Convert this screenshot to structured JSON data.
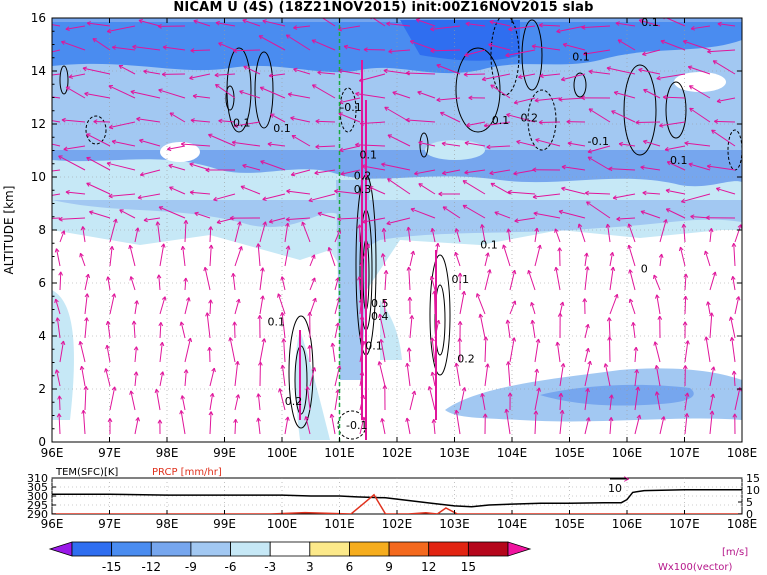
{
  "title": "NICAM U (4S) (18Z21NOV2015) init:00Z16NOV2015 slab",
  "chart_data": [
    {
      "type": "heatmap",
      "ylabel": "ALTITUDE [km]",
      "xlabel": "",
      "x_ticks": [
        "96E",
        "97E",
        "98E",
        "99E",
        "100E",
        "101E",
        "102E",
        "103E",
        "104E",
        "105E",
        "106E",
        "107E",
        "108E"
      ],
      "y_ticks": [
        "0",
        "2",
        "4",
        "6",
        "8",
        "10",
        "12",
        "14",
        "16"
      ],
      "xlim": [
        96,
        108
      ],
      "ylim": [
        0,
        16
      ],
      "grid": true,
      "reference_line_lon": 101,
      "contour_labels": [
        {
          "text": "0.1",
          "lon": 106.4,
          "alt": 15.7
        },
        {
          "text": "0.1",
          "lon": 105.2,
          "alt": 14.4
        },
        {
          "text": "0.1",
          "lon": 99.3,
          "alt": 11.9
        },
        {
          "text": "0.1",
          "lon": 100.0,
          "alt": 11.7
        },
        {
          "text": "-0.1",
          "lon": 101.2,
          "alt": 12.5
        },
        {
          "text": "0.1",
          "lon": 103.8,
          "alt": 12.0
        },
        {
          "text": "0.2",
          "lon": 104.3,
          "alt": 12.1
        },
        {
          "text": "-0.1",
          "lon": 105.5,
          "alt": 11.2
        },
        {
          "text": "0.1",
          "lon": 106.9,
          "alt": 10.5
        },
        {
          "text": "0.1",
          "lon": 101.5,
          "alt": 10.7
        },
        {
          "text": "0.2",
          "lon": 101.4,
          "alt": 9.9
        },
        {
          "text": "0.3",
          "lon": 101.4,
          "alt": 9.4
        },
        {
          "text": "0.1",
          "lon": 103.6,
          "alt": 7.3
        },
        {
          "text": "0",
          "lon": 106.3,
          "alt": 6.4
        },
        {
          "text": "0.1",
          "lon": 103.1,
          "alt": 6.0
        },
        {
          "text": "0.5",
          "lon": 101.7,
          "alt": 5.1
        },
        {
          "text": "0.4",
          "lon": 101.7,
          "alt": 4.6
        },
        {
          "text": "0.1",
          "lon": 101.6,
          "alt": 3.5
        },
        {
          "text": "0.2",
          "lon": 103.2,
          "alt": 3.0
        },
        {
          "text": "0.1",
          "lon": 99.9,
          "alt": 4.4
        },
        {
          "text": "0.2",
          "lon": 100.2,
          "alt": 1.4
        },
        {
          "text": "-0.1",
          "lon": 101.3,
          "alt": 0.5
        }
      ]
    },
    {
      "type": "line",
      "title": "",
      "left_label": "TEM(SFC)[K]",
      "right_label": "PRCP [mm/hr]",
      "left_ticks": [
        "290",
        "295",
        "300",
        "305",
        "310"
      ],
      "right_ticks": [
        "0",
        "5",
        "10",
        "15"
      ],
      "x_ticks": [
        "96E",
        "97E",
        "98E",
        "99E",
        "100E",
        "101E",
        "102E",
        "103E",
        "104E",
        "105E",
        "106E",
        "107E",
        "108E"
      ],
      "annotation": "10",
      "series": [
        {
          "x": [
            96,
            97,
            98,
            99,
            100,
            100.5,
            101,
            101.3,
            101.8,
            102.2,
            102.6,
            103,
            103.3,
            103.6,
            104,
            104.5,
            105,
            105.6,
            105.9,
            106.0,
            106.1,
            106.3,
            107,
            108
          ],
          "values": [
            301,
            301,
            300.5,
            300.5,
            300.5,
            300,
            300,
            299.5,
            299,
            297.5,
            296,
            294.5,
            294,
            295,
            295.5,
            296,
            296,
            296.2,
            296.3,
            298,
            302,
            303,
            303.5,
            303.5
          ]
        },
        {
          "x": [
            96,
            99.8,
            100.4,
            101.2,
            101.4,
            101.6,
            101.8,
            102.2,
            102.5,
            102.7,
            102.85,
            103.05,
            103.4,
            104,
            108
          ],
          "values": [
            0,
            0,
            0.6,
            0,
            4,
            8,
            0,
            0,
            0.5,
            0,
            2.5,
            0,
            0,
            0,
            0
          ]
        }
      ]
    }
  ],
  "colorbar": {
    "ticks": [
      "-15",
      "-12",
      "-9",
      "-6",
      "-3",
      "3",
      "6",
      "9",
      "12",
      "15"
    ],
    "unit": "[m/s]",
    "colors": [
      "#9a19e8",
      "#2f6ef0",
      "#4a8cf0",
      "#76a6ee",
      "#a2c8f2",
      "#c6e8f6",
      "#ffffff",
      "#fce98a",
      "#f6ad1e",
      "#f4691e",
      "#e22412",
      "#b5061b",
      "#f0149f"
    ]
  },
  "vector_label": "Wx100(vector)",
  "colors": {
    "vector": "#e0159a",
    "reference": "#1aa83c",
    "prcp": "#e0321e"
  }
}
